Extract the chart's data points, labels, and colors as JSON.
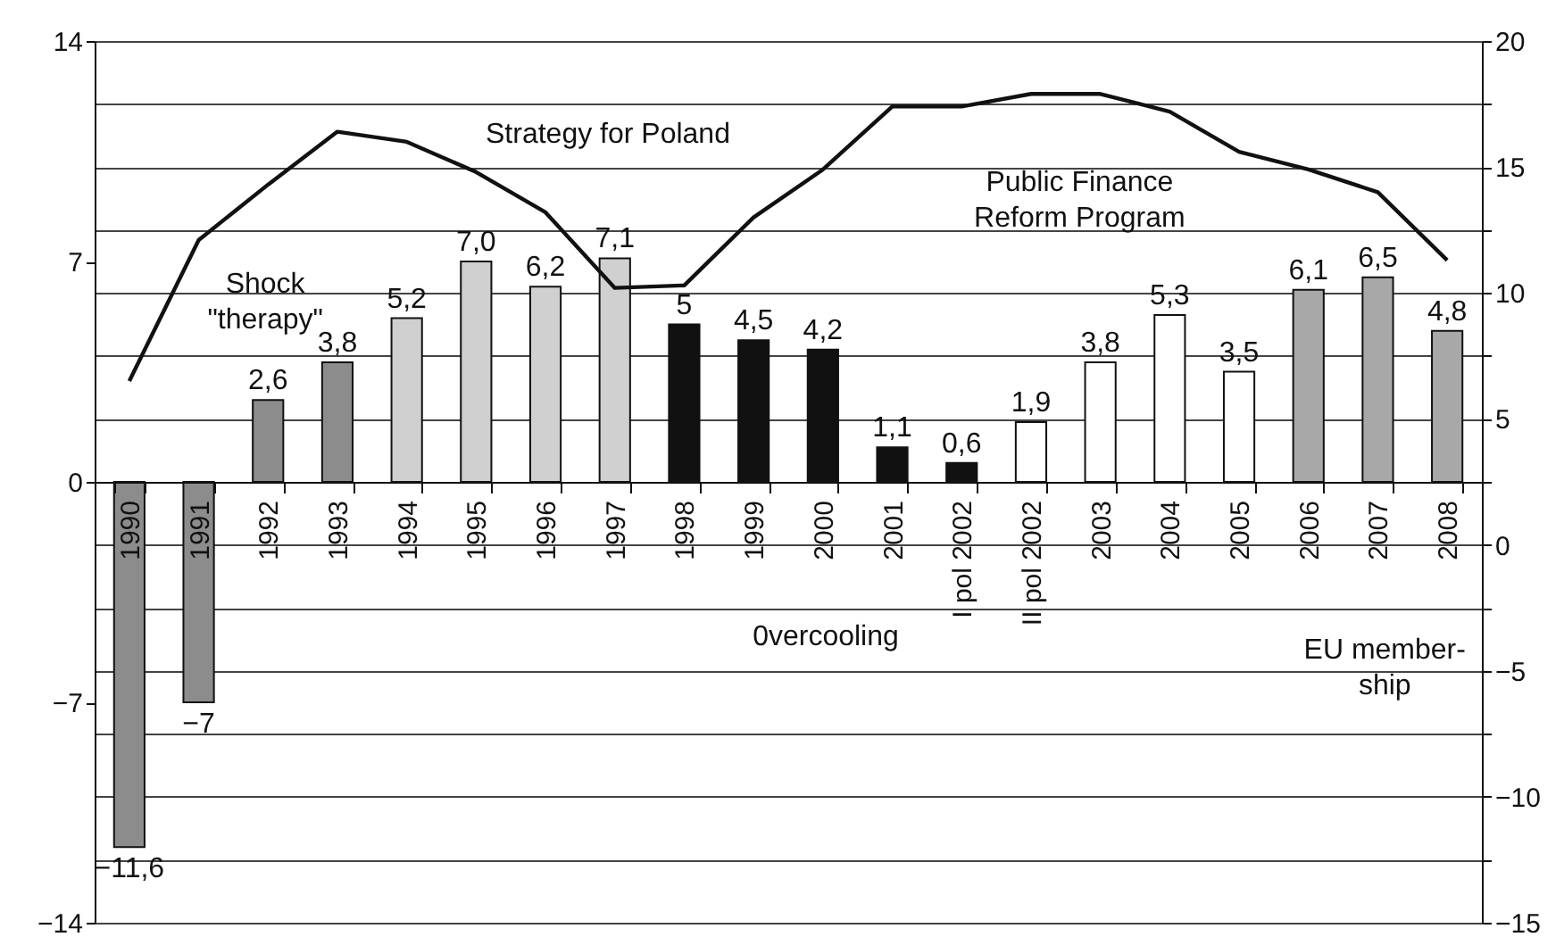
{
  "chart_data": {
    "type": "bar",
    "categories": [
      "1990",
      "1991",
      "1992",
      "1993",
      "1994",
      "1995",
      "1996",
      "1997",
      "1998",
      "1999",
      "2000",
      "2001",
      "I pol 2002",
      "II pol 2002",
      "2003",
      "2004",
      "2005",
      "2006",
      "2007",
      "2008"
    ],
    "series": [
      {
        "type": "bar",
        "colors": [
          "#8c8c8c",
          "#8c8c8c",
          "#8c8c8c",
          "#8c8c8c",
          "#d0d0d0",
          "#d0d0d0",
          "#d0d0d0",
          "#d0d0d0",
          "#111111",
          "#111111",
          "#111111",
          "#111111",
          "#111111",
          "#ffffff",
          "#ffffff",
          "#ffffff",
          "#ffffff",
          "#a8a8a8",
          "#a8a8a8",
          "#a8a8a8"
        ],
        "values": [
          -11.6,
          -7,
          2.6,
          3.8,
          5.2,
          7.0,
          6.2,
          7.1,
          5,
          4.5,
          4.2,
          1.1,
          0.6,
          1.9,
          3.8,
          5.3,
          3.5,
          6.1,
          6.5,
          4.8
        ],
        "value_labels": [
          "−11,6",
          "−7",
          "2,6",
          "3,8",
          "5,2",
          "7,0",
          "6,2",
          "7,1",
          "5",
          "4,5",
          "4,2",
          "1,1",
          "0,6",
          "1,9",
          "3,8",
          "5,3",
          "3,5",
          "6,1",
          "6,5",
          "4,8"
        ]
      },
      {
        "type": "line",
        "axis": "y2",
        "color": "#111111",
        "values": [
          6.5,
          12.1,
          14.3,
          16.4,
          16.0,
          14.8,
          13.2,
          10.2,
          10.3,
          13.0,
          14.9,
          17.4,
          17.4,
          17.9,
          17.9,
          17.2,
          15.6,
          14.9,
          14.0,
          11.3
        ]
      }
    ],
    "ylim": [
      -14,
      14
    ],
    "yticks": [
      {
        "value": -14,
        "label": "−14"
      },
      {
        "value": -7,
        "label": "−7"
      },
      0,
      7,
      14
    ],
    "y2lim": [
      -15,
      20
    ],
    "y2ticks": [
      {
        "value": -15,
        "label": "−15"
      },
      {
        "value": -12.5,
        "label": null
      },
      {
        "value": -10,
        "label": "−10"
      },
      {
        "value": -7.5,
        "label": null
      },
      {
        "value": -5,
        "label": "−5"
      },
      {
        "value": -2.5,
        "label": null
      },
      0,
      {
        "value": 2.5,
        "label": null
      },
      5,
      {
        "value": 7.5,
        "label": null
      },
      10,
      {
        "value": 12.5,
        "label": null
      },
      15,
      {
        "value": 17.5,
        "label": null
      },
      20
    ],
    "grid": "y2",
    "annotations": [
      "Strategy for Poland",
      "Public Finance\nReform Program",
      "Shock\n\"therapy\"",
      "0vercooling",
      "EU member-\nship"
    ]
  }
}
